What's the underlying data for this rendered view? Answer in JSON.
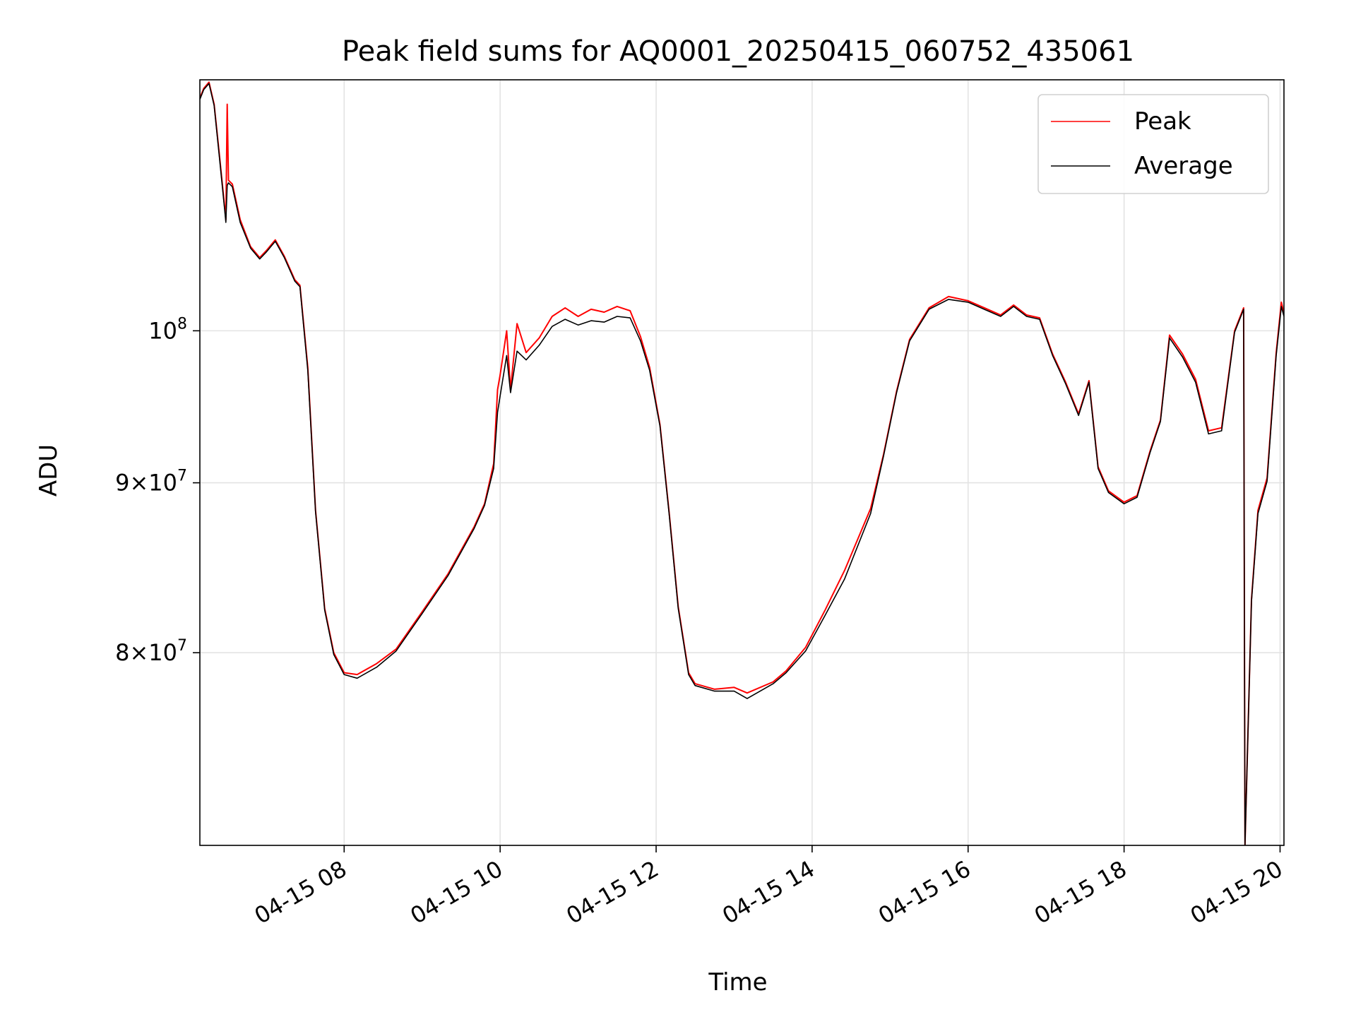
{
  "chart_data": {
    "type": "line",
    "title": "Peak field sums for AQ0001_20250415_060752_435061",
    "xlabel": "Time",
    "ylabel": "ADU",
    "y_scale": "log",
    "ylim": [
      70000000,
      119000000
    ],
    "xlim": [
      "2025-04-15 06:09",
      "2025-04-15 20:03"
    ],
    "grid": true,
    "legend_position": "top-right",
    "x_ticks": [
      {
        "t": "2025-04-15 08:00",
        "label": "04-15 08"
      },
      {
        "t": "2025-04-15 10:00",
        "label": "04-15 10"
      },
      {
        "t": "2025-04-15 12:00",
        "label": "04-15 12"
      },
      {
        "t": "2025-04-15 14:00",
        "label": "04-15 14"
      },
      {
        "t": "2025-04-15 16:00",
        "label": "04-15 16"
      },
      {
        "t": "2025-04-15 18:00",
        "label": "04-15 18"
      },
      {
        "t": "2025-04-15 20:00",
        "label": "04-15 20"
      }
    ],
    "y_ticks": [
      {
        "value": 80000000,
        "base": "8",
        "exp": "7",
        "mult": true
      },
      {
        "value": 90000000,
        "base": "9",
        "exp": "7",
        "mult": true
      },
      {
        "value": 100000000,
        "base": "10",
        "exp": "8",
        "mult": false
      }
    ],
    "series": [
      {
        "name": "Peak",
        "color": "#ff0000",
        "points": [
          [
            "2025-04-15 06:09",
            117500000
          ],
          [
            "2025-04-15 06:12",
            118300000
          ],
          [
            "2025-04-15 06:16",
            118800000
          ],
          [
            "2025-04-15 06:20",
            117000000
          ],
          [
            "2025-04-15 06:24",
            113000000
          ],
          [
            "2025-04-15 06:28",
            109000000
          ],
          [
            "2025-04-15 06:29",
            108000000
          ],
          [
            "2025-04-15 06:30",
            117000000
          ],
          [
            "2025-04-15 06:31",
            111000000
          ],
          [
            "2025-04-15 06:34",
            110700000
          ],
          [
            "2025-04-15 06:40",
            108000000
          ],
          [
            "2025-04-15 06:48",
            106000000
          ],
          [
            "2025-04-15 06:55",
            105200000
          ],
          [
            "2025-04-15 07:00",
            105700000
          ],
          [
            "2025-04-15 07:07",
            106500000
          ],
          [
            "2025-04-15 07:14",
            105300000
          ],
          [
            "2025-04-15 07:22",
            103600000
          ],
          [
            "2025-04-15 07:26",
            103200000
          ],
          [
            "2025-04-15 07:32",
            97500000
          ],
          [
            "2025-04-15 07:38",
            88300000
          ],
          [
            "2025-04-15 07:45",
            82500000
          ],
          [
            "2025-04-15 07:52",
            80000000
          ],
          [
            "2025-04-15 08:00",
            78900000
          ],
          [
            "2025-04-15 08:10",
            78800000
          ],
          [
            "2025-04-15 08:25",
            79400000
          ],
          [
            "2025-04-15 08:40",
            80200000
          ],
          [
            "2025-04-15 09:00",
            82300000
          ],
          [
            "2025-04-15 09:20",
            84500000
          ],
          [
            "2025-04-15 09:40",
            87300000
          ],
          [
            "2025-04-15 09:48",
            88700000
          ],
          [
            "2025-04-15 09:55",
            91200000
          ],
          [
            "2025-04-15 09:58",
            96000000
          ],
          [
            "2025-04-15 10:00",
            97000000
          ],
          [
            "2025-04-15 10:05",
            100000000
          ],
          [
            "2025-04-15 10:08",
            96000000
          ],
          [
            "2025-04-15 10:13",
            100500000
          ],
          [
            "2025-04-15 10:20",
            98500000
          ],
          [
            "2025-04-15 10:30",
            99500000
          ],
          [
            "2025-04-15 10:40",
            101000000
          ],
          [
            "2025-04-15 10:50",
            101600000
          ],
          [
            "2025-04-15 11:00",
            101000000
          ],
          [
            "2025-04-15 11:10",
            101500000
          ],
          [
            "2025-04-15 11:20",
            101300000
          ],
          [
            "2025-04-15 11:30",
            101700000
          ],
          [
            "2025-04-15 11:40",
            101400000
          ],
          [
            "2025-04-15 11:48",
            99600000
          ],
          [
            "2025-04-15 11:55",
            97500000
          ],
          [
            "2025-04-15 12:03",
            93700000
          ],
          [
            "2025-04-15 12:10",
            88200000
          ],
          [
            "2025-04-15 12:17",
            82600000
          ],
          [
            "2025-04-15 12:25",
            78900000
          ],
          [
            "2025-04-15 12:30",
            78300000
          ],
          [
            "2025-04-15 12:45",
            78000000
          ],
          [
            "2025-04-15 13:00",
            78100000
          ],
          [
            "2025-04-15 13:10",
            77800000
          ],
          [
            "2025-04-15 13:30",
            78400000
          ],
          [
            "2025-04-15 13:40",
            79000000
          ],
          [
            "2025-04-15 13:55",
            80300000
          ],
          [
            "2025-04-15 14:10",
            82400000
          ],
          [
            "2025-04-15 14:25",
            84700000
          ],
          [
            "2025-04-15 14:45",
            88400000
          ],
          [
            "2025-04-15 14:55",
            91800000
          ],
          [
            "2025-04-15 15:05",
            95900000
          ],
          [
            "2025-04-15 15:15",
            99400000
          ],
          [
            "2025-04-15 15:30",
            101600000
          ],
          [
            "2025-04-15 15:45",
            102400000
          ],
          [
            "2025-04-15 16:00",
            102100000
          ],
          [
            "2025-04-15 16:15",
            101500000
          ],
          [
            "2025-04-15 16:25",
            101100000
          ],
          [
            "2025-04-15 16:35",
            101800000
          ],
          [
            "2025-04-15 16:45",
            101100000
          ],
          [
            "2025-04-15 16:55",
            100900000
          ],
          [
            "2025-04-15 17:05",
            98400000
          ],
          [
            "2025-04-15 17:15",
            96500000
          ],
          [
            "2025-04-15 17:25",
            94400000
          ],
          [
            "2025-04-15 17:33",
            96600000
          ],
          [
            "2025-04-15 17:40",
            91000000
          ],
          [
            "2025-04-15 17:48",
            89500000
          ],
          [
            "2025-04-15 18:00",
            88800000
          ],
          [
            "2025-04-15 18:10",
            89200000
          ],
          [
            "2025-04-15 18:20",
            92000000
          ],
          [
            "2025-04-15 18:28",
            94000000
          ],
          [
            "2025-04-15 18:35",
            99700000
          ],
          [
            "2025-04-15 18:45",
            98400000
          ],
          [
            "2025-04-15 18:55",
            96700000
          ],
          [
            "2025-04-15 19:05",
            93300000
          ],
          [
            "2025-04-15 19:15",
            93500000
          ],
          [
            "2025-04-15 19:25",
            100000000
          ],
          [
            "2025-04-15 19:32",
            101600000
          ],
          [
            "2025-04-15 19:33",
            70000000
          ],
          [
            "2025-04-15 19:38",
            83000000
          ],
          [
            "2025-04-15 19:43",
            88300000
          ],
          [
            "2025-04-15 19:50",
            90300000
          ],
          [
            "2025-04-15 19:57",
            98500000
          ],
          [
            "2025-04-15 20:01",
            102000000
          ],
          [
            "2025-04-15 20:03",
            101200000
          ]
        ]
      },
      {
        "name": "Average",
        "color": "#000000",
        "points": [
          [
            "2025-04-15 06:09",
            117400000
          ],
          [
            "2025-04-15 06:12",
            118200000
          ],
          [
            "2025-04-15 06:16",
            118700000
          ],
          [
            "2025-04-15 06:20",
            116900000
          ],
          [
            "2025-04-15 06:24",
            112800000
          ],
          [
            "2025-04-15 06:28",
            108800000
          ],
          [
            "2025-04-15 06:29",
            107800000
          ],
          [
            "2025-04-15 06:30",
            110600000
          ],
          [
            "2025-04-15 06:31",
            110800000
          ],
          [
            "2025-04-15 06:34",
            110500000
          ],
          [
            "2025-04-15 06:40",
            107800000
          ],
          [
            "2025-04-15 06:48",
            105900000
          ],
          [
            "2025-04-15 06:55",
            105100000
          ],
          [
            "2025-04-15 07:00",
            105600000
          ],
          [
            "2025-04-15 07:07",
            106400000
          ],
          [
            "2025-04-15 07:14",
            105200000
          ],
          [
            "2025-04-15 07:22",
            103500000
          ],
          [
            "2025-04-15 07:26",
            103100000
          ],
          [
            "2025-04-15 07:32",
            97300000
          ],
          [
            "2025-04-15 07:38",
            88200000
          ],
          [
            "2025-04-15 07:45",
            82400000
          ],
          [
            "2025-04-15 07:52",
            79900000
          ],
          [
            "2025-04-15 08:00",
            78800000
          ],
          [
            "2025-04-15 08:10",
            78600000
          ],
          [
            "2025-04-15 08:25",
            79200000
          ],
          [
            "2025-04-15 08:40",
            80100000
          ],
          [
            "2025-04-15 09:00",
            82200000
          ],
          [
            "2025-04-15 09:20",
            84400000
          ],
          [
            "2025-04-15 09:40",
            87200000
          ],
          [
            "2025-04-15 09:48",
            88600000
          ],
          [
            "2025-04-15 09:55",
            90900000
          ],
          [
            "2025-04-15 09:58",
            94500000
          ],
          [
            "2025-04-15 10:00",
            95600000
          ],
          [
            "2025-04-15 10:05",
            98300000
          ],
          [
            "2025-04-15 10:08",
            95800000
          ],
          [
            "2025-04-15 10:13",
            98600000
          ],
          [
            "2025-04-15 10:20",
            98000000
          ],
          [
            "2025-04-15 10:30",
            99000000
          ],
          [
            "2025-04-15 10:40",
            100300000
          ],
          [
            "2025-04-15 10:50",
            100800000
          ],
          [
            "2025-04-15 11:00",
            100400000
          ],
          [
            "2025-04-15 11:10",
            100700000
          ],
          [
            "2025-04-15 11:20",
            100600000
          ],
          [
            "2025-04-15 11:30",
            101000000
          ],
          [
            "2025-04-15 11:40",
            100900000
          ],
          [
            "2025-04-15 11:48",
            99300000
          ],
          [
            "2025-04-15 11:55",
            97300000
          ],
          [
            "2025-04-15 12:03",
            93600000
          ],
          [
            "2025-04-15 12:10",
            88100000
          ],
          [
            "2025-04-15 12:17",
            82500000
          ],
          [
            "2025-04-15 12:25",
            78800000
          ],
          [
            "2025-04-15 12:30",
            78200000
          ],
          [
            "2025-04-15 12:45",
            77900000
          ],
          [
            "2025-04-15 13:00",
            77900000
          ],
          [
            "2025-04-15 13:10",
            77500000
          ],
          [
            "2025-04-15 13:30",
            78300000
          ],
          [
            "2025-04-15 13:40",
            78900000
          ],
          [
            "2025-04-15 13:55",
            80100000
          ],
          [
            "2025-04-15 14:10",
            82100000
          ],
          [
            "2025-04-15 14:25",
            84200000
          ],
          [
            "2025-04-15 14:45",
            88100000
          ],
          [
            "2025-04-15 14:55",
            91700000
          ],
          [
            "2025-04-15 15:05",
            95800000
          ],
          [
            "2025-04-15 15:15",
            99300000
          ],
          [
            "2025-04-15 15:30",
            101500000
          ],
          [
            "2025-04-15 15:45",
            102200000
          ],
          [
            "2025-04-15 16:00",
            102000000
          ],
          [
            "2025-04-15 16:15",
            101400000
          ],
          [
            "2025-04-15 16:25",
            101000000
          ],
          [
            "2025-04-15 16:35",
            101700000
          ],
          [
            "2025-04-15 16:45",
            101000000
          ],
          [
            "2025-04-15 16:55",
            100800000
          ],
          [
            "2025-04-15 17:05",
            98300000
          ],
          [
            "2025-04-15 17:15",
            96400000
          ],
          [
            "2025-04-15 17:25",
            94300000
          ],
          [
            "2025-04-15 17:33",
            96500000
          ],
          [
            "2025-04-15 17:40",
            90900000
          ],
          [
            "2025-04-15 17:48",
            89400000
          ],
          [
            "2025-04-15 18:00",
            88700000
          ],
          [
            "2025-04-15 18:10",
            89100000
          ],
          [
            "2025-04-15 18:20",
            91900000
          ],
          [
            "2025-04-15 18:28",
            93900000
          ],
          [
            "2025-04-15 18:35",
            99500000
          ],
          [
            "2025-04-15 18:45",
            98200000
          ],
          [
            "2025-04-15 18:55",
            96500000
          ],
          [
            "2025-04-15 19:05",
            93100000
          ],
          [
            "2025-04-15 19:15",
            93300000
          ],
          [
            "2025-04-15 19:25",
            99900000
          ],
          [
            "2025-04-15 19:32",
            101500000
          ],
          [
            "2025-04-15 19:33",
            70000000
          ],
          [
            "2025-04-15 19:38",
            82900000
          ],
          [
            "2025-04-15 19:43",
            88100000
          ],
          [
            "2025-04-15 19:50",
            90100000
          ],
          [
            "2025-04-15 19:57",
            98300000
          ],
          [
            "2025-04-15 20:01",
            101700000
          ],
          [
            "2025-04-15 20:03",
            101000000
          ]
        ]
      }
    ]
  }
}
